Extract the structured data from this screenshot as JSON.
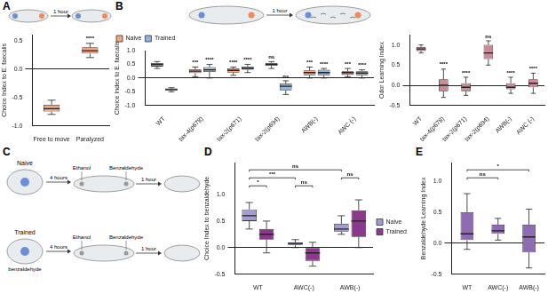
{
  "panel_labels": [
    "A",
    "B",
    "C",
    "D",
    "E"
  ],
  "schematics": {
    "top": {
      "arrow_label": "1 hour"
    },
    "C": {
      "rows": [
        "Naive",
        "Trained"
      ],
      "pretreatment_label": "benzaldehyde",
      "first_step": "4 hours",
      "odors": [
        "Ethanol",
        "Benzaldehyde"
      ],
      "second_step": "1 hour"
    }
  },
  "chart_data": [
    {
      "panel": "A",
      "type": "box",
      "y_label": "Choice Index to E. faecalis",
      "categories": [
        "Free to move",
        "Paralyzed"
      ],
      "series": [
        {
          "color": "#f4a582",
          "boxes": [
            {
              "min": -0.8,
              "q1": -0.75,
              "median": -0.7,
              "q3": -0.63,
              "max": -0.55
            },
            {
              "min": 0.2,
              "q1": 0.27,
              "median": 0.32,
              "q3": 0.38,
              "max": 0.45
            }
          ]
        }
      ],
      "ylim": [
        -1,
        0.6
      ],
      "yticks": [
        {
          "value": -1,
          "label": "-1.0"
        },
        -0.5,
        {
          "value": 0,
          "label": "0.0"
        },
        0.5
      ],
      "grid": false,
      "annotations": [
        {
          "category": "Paralyzed",
          "text": "****"
        }
      ]
    },
    {
      "panel": "B",
      "type": "box",
      "y_label": "Choice Index to E. faecalis",
      "categories": [
        "WT",
        "tax-4(p678)",
        "tax-2(p671)",
        "tax-2(p694)",
        "AWB(-)",
        "AWC (-)"
      ],
      "series": [
        {
          "name": "Naive",
          "color": "#f4a582",
          "boxes": [
            {
              "min": 0.35,
              "q1": 0.42,
              "median": 0.5,
              "q3": 0.55,
              "max": 0.6
            },
            {
              "min": 0.05,
              "q1": 0.18,
              "median": 0.25,
              "q3": 0.32,
              "max": 0.4
            },
            {
              "min": 0.1,
              "q1": 0.2,
              "median": 0.28,
              "q3": 0.35,
              "max": 0.4
            },
            {
              "min": 0.35,
              "q1": 0.45,
              "median": 0.5,
              "q3": 0.55,
              "max": 0.6
            },
            {
              "min": 0.0,
              "q1": 0.1,
              "median": 0.2,
              "q3": 0.28,
              "max": 0.4
            },
            {
              "min": 0.05,
              "q1": 0.12,
              "median": 0.2,
              "q3": 0.25,
              "max": 0.35
            }
          ]
        },
        {
          "name": "Trained",
          "color": "#92b4dc",
          "boxes": [
            {
              "min": -0.5,
              "q1": -0.45,
              "median": -0.42,
              "q3": -0.38,
              "max": -0.35
            },
            {
              "min": 0.0,
              "q1": 0.22,
              "median": 0.3,
              "q3": 0.4,
              "max": 0.5
            },
            {
              "min": 0.2,
              "q1": 0.3,
              "median": 0.35,
              "q3": 0.42,
              "max": 0.5
            },
            {
              "min": -0.6,
              "q1": -0.45,
              "median": -0.3,
              "q3": -0.2,
              "max": -0.1
            },
            {
              "min": 0.0,
              "q1": 0.1,
              "median": 0.2,
              "q3": 0.3,
              "max": 0.35
            },
            {
              "min": 0.0,
              "q1": 0.1,
              "median": 0.18,
              "q3": 0.25,
              "max": 0.3
            }
          ]
        }
      ],
      "ylim": [
        -1,
        1
      ],
      "yticks": [
        {
          "value": -1,
          "label": "-1.0"
        },
        -0.5,
        {
          "value": 0,
          "label": "0.0"
        },
        0.5,
        {
          "value": 1,
          "label": "1.0"
        }
      ],
      "grid": false,
      "legend": "top-left",
      "annotations": [
        {
          "category": "tax-4(p678)",
          "series": "Naive",
          "text": "***"
        },
        {
          "category": "tax-4(p678)",
          "series": "Trained",
          "text": "****"
        },
        {
          "category": "tax-2(p671)",
          "series": "Naive",
          "text": "****"
        },
        {
          "category": "tax-2(p671)",
          "series": "Trained",
          "text": "****"
        },
        {
          "category": "tax-2(p694)",
          "series": "Naive",
          "text": "ns"
        },
        {
          "category": "tax-2(p694)",
          "series": "Trained",
          "text": "ns"
        },
        {
          "category": "AWB(-)",
          "series": "Naive",
          "text": "***"
        },
        {
          "category": "AWB(-)",
          "series": "Trained",
          "text": "****"
        },
        {
          "category": "AWC (-)",
          "series": "Naive",
          "text": "***"
        },
        {
          "category": "AWC (-)",
          "series": "Trained",
          "text": "****"
        }
      ]
    },
    {
      "panel": "B",
      "type": "box",
      "y_label": "Odor Learning Index",
      "categories": [
        "WT",
        "tax-4(p678)",
        "tax-2(p671)",
        "tax-2(p694)",
        "AWB(-)",
        "AWC (-)"
      ],
      "series": [
        {
          "color": "#c98b95",
          "boxes": [
            {
              "min": 0.8,
              "q1": 0.85,
              "median": 0.9,
              "q3": 0.95,
              "max": 1.0
            },
            {
              "min": -0.3,
              "q1": -0.15,
              "median": 0.0,
              "q3": 0.15,
              "max": 0.4
            },
            {
              "min": -0.25,
              "q1": -0.15,
              "median": -0.05,
              "q3": 0.05,
              "max": 0.2
            },
            {
              "min": 0.5,
              "q1": 0.65,
              "median": 0.8,
              "q3": 1.0,
              "max": 1.1
            },
            {
              "min": -0.2,
              "q1": -0.1,
              "median": -0.05,
              "q3": 0.05,
              "max": 0.2
            },
            {
              "min": -0.2,
              "q1": -0.05,
              "median": 0.05,
              "q3": 0.15,
              "max": 0.3
            }
          ]
        }
      ],
      "ylim": [
        -0.5,
        1.25
      ],
      "yticks": [
        -0.5,
        {
          "value": 0,
          "label": "0.0"
        },
        0.5,
        {
          "value": 1,
          "label": "1.0"
        }
      ],
      "grid": false,
      "annotations": [
        {
          "category": "tax-4(p678)",
          "text": "****"
        },
        {
          "category": "tax-2(p671)",
          "text": "****"
        },
        {
          "category": "tax-2(p694)",
          "text": "ns"
        },
        {
          "category": "AWB(-)",
          "text": "****"
        },
        {
          "category": "AWC (-)",
          "text": "****"
        }
      ]
    },
    {
      "panel": "D",
      "type": "box",
      "y_label": "Choice Index to benzaldehyde",
      "categories": [
        "WT",
        "AWC(-)",
        "AWB(-)"
      ],
      "series": [
        {
          "name": "Naive",
          "color": "#a59dd1",
          "boxes": [
            {
              "min": 0.35,
              "q1": 0.5,
              "median": 0.6,
              "q3": 0.72,
              "max": 0.85
            },
            {
              "min": 0.0,
              "q1": 0.05,
              "median": 0.08,
              "q3": 0.1,
              "max": 0.15
            },
            {
              "min": 0.25,
              "q1": 0.3,
              "median": 0.35,
              "q3": 0.45,
              "max": 0.6
            }
          ]
        },
        {
          "name": "Trained",
          "color": "#8b3a8b",
          "boxes": [
            {
              "min": -0.1,
              "q1": 0.15,
              "median": 0.25,
              "q3": 0.35,
              "max": 0.5
            },
            {
              "min": -0.35,
              "q1": -0.25,
              "median": -0.1,
              "q3": 0.0,
              "max": 0.1
            },
            {
              "min": 0.0,
              "q1": 0.2,
              "median": 0.5,
              "q3": 0.7,
              "max": 0.9
            }
          ]
        }
      ],
      "ylim": [
        -0.5,
        1.6
      ],
      "yticks": [
        -0.5,
        {
          "value": 0,
          "label": "0.0"
        },
        0.5,
        {
          "value": 1,
          "label": "1.0"
        }
      ],
      "grid": false,
      "legend": "right",
      "brackets": [
        {
          "from": {
            "category": "WT",
            "series": "Naive"
          },
          "to": {
            "category": "AWB(-)",
            "series": "Naive"
          },
          "text": "ns"
        },
        {
          "from": {
            "category": "WT",
            "series": "Naive"
          },
          "to": {
            "category": "AWC(-)",
            "series": "Naive"
          },
          "text": "***"
        },
        {
          "from": {
            "category": "WT",
            "series": "Naive"
          },
          "to": {
            "category": "WT",
            "series": "Trained"
          },
          "text": "*"
        },
        {
          "from": {
            "category": "AWC(-)",
            "series": "Naive"
          },
          "to": {
            "category": "AWC(-)",
            "series": "Trained"
          },
          "text": "ns"
        },
        {
          "from": {
            "category": "AWB(-)",
            "series": "Naive"
          },
          "to": {
            "category": "AWB(-)",
            "series": "Trained"
          },
          "text": "ns"
        }
      ]
    },
    {
      "panel": "E",
      "type": "box",
      "y_label": "Benzaldehyde Learning Index",
      "categories": [
        "WT",
        "AWC(-)",
        "AWB(-)"
      ],
      "series": [
        {
          "color": "#8e6bb3",
          "boxes": [
            {
              "min": -0.1,
              "q1": 0.05,
              "median": 0.15,
              "q3": 0.5,
              "max": 0.8
            },
            {
              "min": 0.05,
              "q1": 0.15,
              "median": 0.2,
              "q3": 0.3,
              "max": 0.4
            },
            {
              "min": -0.4,
              "q1": -0.15,
              "median": 0.1,
              "q3": 0.3,
              "max": 0.55
            }
          ]
        }
      ],
      "ylim": [
        -0.5,
        1.3
      ],
      "yticks": [
        -0.5,
        {
          "value": 0,
          "label": "0.0"
        },
        0.5,
        {
          "value": 1,
          "label": "1.0"
        }
      ],
      "grid": false,
      "brackets": [
        {
          "from": {
            "category": "WT"
          },
          "to": {
            "category": "AWB(-)"
          },
          "text": "*"
        },
        {
          "from": {
            "category": "WT"
          },
          "to": {
            "category": "AWC(-)"
          },
          "text": "ns"
        }
      ]
    }
  ]
}
